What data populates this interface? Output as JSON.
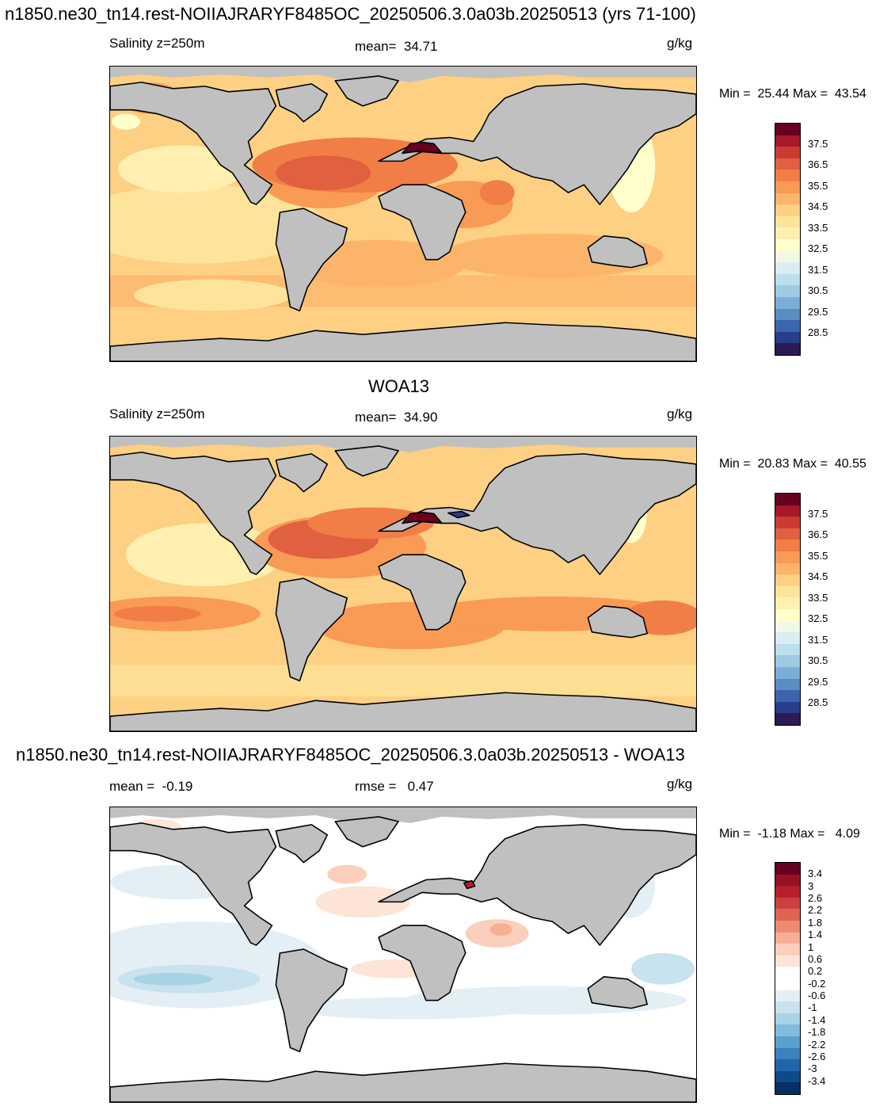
{
  "colors": {
    "land": "#c0c0c0",
    "coast": "#000000",
    "abs_scale": [
      "#2c1a55",
      "#283e8c",
      "#3b66ae",
      "#5b8cc2",
      "#7aaed6",
      "#9ccbe3",
      "#bcdfed",
      "#dbedf2",
      "#f1f8e6",
      "#ffffcc",
      "#fff0b0",
      "#fde49a",
      "#fdd083",
      "#fcb46a",
      "#f99a55",
      "#f07e46",
      "#e06040",
      "#cd3a32",
      "#a8172a",
      "#68001f"
    ],
    "diff_scale": [
      "#053061",
      "#0f4a87",
      "#2166ac",
      "#3a82bb",
      "#5aa0cc",
      "#82bcdc",
      "#a9d2e6",
      "#c8e2ee",
      "#e3eef5",
      "#ffffff",
      "#ffffff",
      "#fde4d6",
      "#fbcfbb",
      "#f6ae94",
      "#ec8a72",
      "#de6453",
      "#cc4040",
      "#b5202c",
      "#961124",
      "#67001f"
    ]
  },
  "panel1": {
    "title": "n1850.ne30_tn14.rest-NOIIAJRARYF8485OC_20250506.3.0a03b.20250513 (yrs 71-100)",
    "left": "Salinity z=250m",
    "center": "mean=  34.71",
    "right": "g/kg",
    "minmax": "Min =  25.44 Max =  43.54",
    "ticks": [
      "37.5",
      "36.5",
      "35.5",
      "34.5",
      "33.5",
      "32.5",
      "31.5",
      "30.5",
      "29.5",
      "28.5"
    ]
  },
  "panel2": {
    "title": "WOA13",
    "left": "Salinity z=250m",
    "center": "mean=  34.90",
    "right": "g/kg",
    "minmax": "Min =  20.83 Max =  40.55",
    "ticks": [
      "37.5",
      "36.5",
      "35.5",
      "34.5",
      "33.5",
      "32.5",
      "31.5",
      "30.5",
      "29.5",
      "28.5"
    ]
  },
  "panel3": {
    "title": "n1850.ne30_tn14.rest-NOIIAJRARYF8485OC_20250506.3.0a03b.20250513 - WOA13",
    "left": "mean =  -0.19",
    "center": "rmse =   0.47",
    "right": "g/kg",
    "minmax": "Min =  -1.18 Max =   4.09",
    "ticks": [
      "3.4",
      "3",
      "2.6",
      "2.2",
      "1.8",
      "1.4",
      "1",
      "0.6",
      "0.2",
      "-0.2",
      "-0.6",
      "-1",
      "-1.4",
      "-1.8",
      "-2.2",
      "-2.6",
      "-3",
      "-3.4"
    ]
  }
}
